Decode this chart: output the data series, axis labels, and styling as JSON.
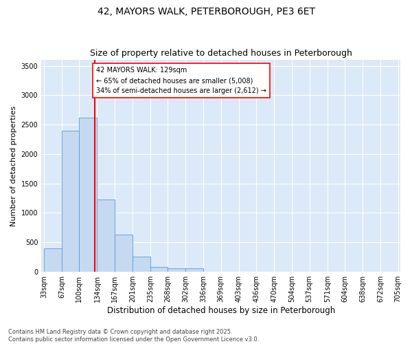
{
  "title": "42, MAYORS WALK, PETERBOROUGH, PE3 6ET",
  "subtitle": "Size of property relative to detached houses in Peterborough",
  "xlabel": "Distribution of detached houses by size in Peterborough",
  "ylabel": "Number of detached properties",
  "footer_line1": "Contains HM Land Registry data © Crown copyright and database right 2025.",
  "footer_line2": "Contains public sector information licensed under the Open Government Licence v3.0.",
  "property_label": "42 MAYORS WALK: 129sqm",
  "annotation_line1": "← 65% of detached houses are smaller (5,008)",
  "annotation_line2": "34% of semi-detached houses are larger (2,612) →",
  "bar_edges": [
    33,
    67,
    100,
    134,
    167,
    201,
    235,
    268,
    302,
    336,
    369,
    403,
    436,
    470,
    504,
    537,
    571,
    604,
    638,
    672,
    705
  ],
  "bar_values": [
    390,
    2400,
    2620,
    1230,
    630,
    250,
    80,
    60,
    50,
    0,
    0,
    0,
    0,
    0,
    0,
    0,
    0,
    0,
    0,
    0
  ],
  "bar_color": "#c5d9f1",
  "bar_edge_color": "#5b9bd5",
  "vline_color": "#ff0000",
  "vline_x": 129,
  "annotation_box_color": "#ff0000",
  "ylim": [
    0,
    3600
  ],
  "yticks": [
    0,
    500,
    1000,
    1500,
    2000,
    2500,
    3000,
    3500
  ],
  "fig_background": "#ffffff",
  "plot_background": "#dce9f8",
  "grid_color": "#ffffff",
  "title_fontsize": 10,
  "subtitle_fontsize": 9,
  "xlabel_fontsize": 8.5,
  "ylabel_fontsize": 8,
  "tick_fontsize": 7,
  "annotation_fontsize": 7,
  "footer_fontsize": 6
}
